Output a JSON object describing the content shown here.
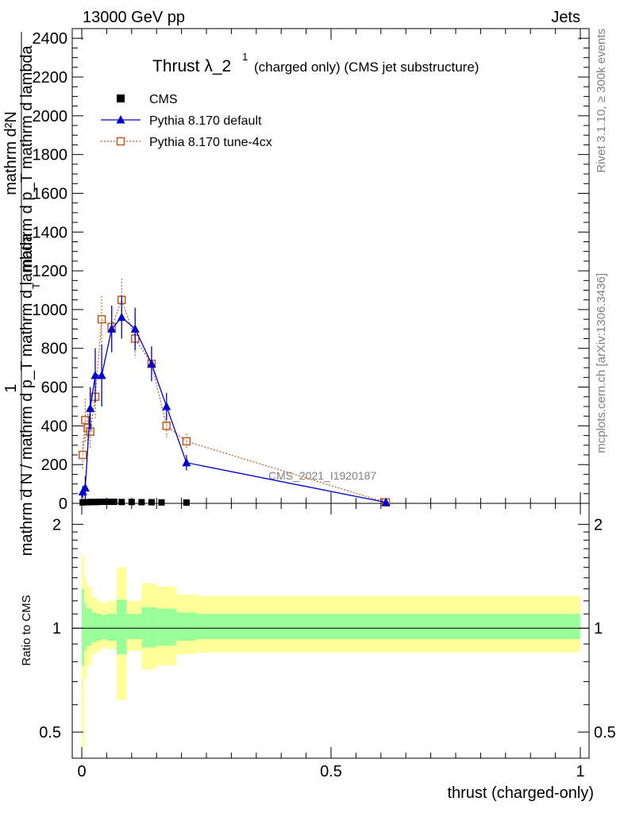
{
  "header": {
    "left": "13000 GeV pp",
    "right": "Jets"
  },
  "side": {
    "rivet": "Rivet 3.1.10, ≥ 300k events",
    "mcplots": "mcplots.cern.ch [arXiv:1306.3436]"
  },
  "watermark": "CMS_2021_I1920187",
  "title": {
    "main": "Thrust λ_2",
    "superscript": "1",
    "suffix": "(charged only) (CMS jet substructure)"
  },
  "ylabel_main": {
    "numerator_left": "1",
    "fraction_text": "mathrm d N / mathrm d p_T mathrm d lambda",
    "right_num": "mathrm d²N",
    "right_den": "mathrm d p_T mathrm d lambda",
    "sub_T": "T"
  },
  "ylabel_ratio": "Ratio to CMS",
  "xlabel": "thrust (charged-only)",
  "colors": {
    "cms": "#000000",
    "default": "#0000cc",
    "tune": "#c0632a",
    "band_inner": "#99ff99",
    "band_outer": "#ffff99"
  },
  "chart_data": [
    {
      "type": "line",
      "panel": "main",
      "xlim": [
        0,
        1
      ],
      "ylim": [
        0,
        2450
      ],
      "y_ticks": [
        0,
        200,
        400,
        600,
        800,
        1000,
        1200,
        1400,
        1600,
        1800,
        2000,
        2200,
        2400
      ],
      "legend_position": "top-left",
      "series": [
        {
          "name": "CMS",
          "marker": "square",
          "x": [
            0.002,
            0.007,
            0.012,
            0.017,
            0.023,
            0.03,
            0.037,
            0.045,
            0.055,
            0.065,
            0.08,
            0.1,
            0.12,
            0.14,
            0.16,
            0.21
          ],
          "values": [
            5,
            6,
            6,
            7,
            7,
            7,
            8,
            8,
            8,
            8,
            7,
            7,
            6,
            6,
            5,
            4
          ]
        },
        {
          "name": "Pythia 8.170 default",
          "marker": "triangle",
          "x": [
            0.002,
            0.007,
            0.017,
            0.027,
            0.04,
            0.06,
            0.08,
            0.107,
            0.14,
            0.17,
            0.21,
            0.61
          ],
          "values": [
            60,
            80,
            490,
            660,
            660,
            900,
            960,
            900,
            720,
            500,
            210,
            5
          ],
          "err": [
            30,
            60,
            110,
            140,
            160,
            120,
            110,
            110,
            90,
            70,
            40,
            3
          ]
        },
        {
          "name": "Pythia 8.170 tune-4cx",
          "marker": "open-square",
          "x": [
            0.002,
            0.007,
            0.012,
            0.017,
            0.027,
            0.04,
            0.06,
            0.08,
            0.107,
            0.14,
            0.17,
            0.21,
            0.61
          ],
          "values": [
            250,
            430,
            390,
            370,
            550,
            950,
            910,
            1050,
            850,
            720,
            400,
            320,
            5
          ],
          "err": [
            70,
            110,
            90,
            90,
            110,
            120,
            110,
            110,
            100,
            80,
            60,
            40,
            3
          ]
        }
      ]
    },
    {
      "type": "area",
      "panel": "ratio",
      "xlim": [
        0,
        1
      ],
      "ylim": [
        0.42,
        2.3
      ],
      "y_scale": "log",
      "y_tick_labels": [
        "0.5",
        "1",
        "2"
      ],
      "x_tick_labels": [
        "0",
        "0.5",
        "1"
      ],
      "reference_line": 1,
      "bins": [
        0,
        0.005,
        0.01,
        0.02,
        0.03,
        0.04,
        0.05,
        0.07,
        0.09,
        0.12,
        0.15,
        0.19,
        0.23,
        1.0
      ],
      "inner_band": {
        "low": [
          0.78,
          0.86,
          0.89,
          0.91,
          0.92,
          0.93,
          0.92,
          0.84,
          0.93,
          0.88,
          0.89,
          0.92,
          0.93
        ],
        "high": [
          1.3,
          1.18,
          1.14,
          1.11,
          1.1,
          1.09,
          1.1,
          1.21,
          1.1,
          1.15,
          1.14,
          1.11,
          1.1
        ]
      },
      "outer_band": {
        "low": [
          0.45,
          0.72,
          0.78,
          0.84,
          0.86,
          0.88,
          0.87,
          0.62,
          0.86,
          0.76,
          0.78,
          0.84,
          0.85
        ]
      },
      "outer_band_high": [
        1.62,
        1.4,
        1.32,
        1.23,
        1.2,
        1.18,
        1.2,
        1.5,
        1.2,
        1.35,
        1.32,
        1.25,
        1.24
      ]
    }
  ]
}
